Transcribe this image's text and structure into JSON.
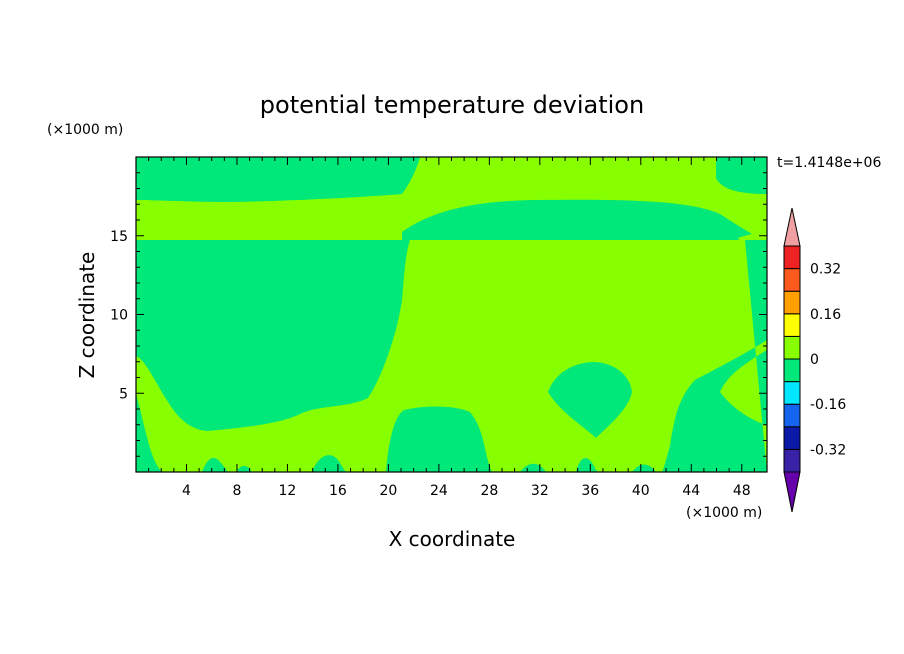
{
  "chart_data": {
    "type": "heatmap",
    "title": "potential temperature deviation",
    "xlabel": "X coordinate",
    "ylabel": "Z coordinate",
    "x_unit": "(×1000 m)",
    "y_unit": "(×1000 m)",
    "time_label": "t=1.4148e+06",
    "xlim": [
      0,
      50
    ],
    "ylim": [
      0,
      20
    ],
    "x_ticks": [
      4,
      8,
      12,
      16,
      20,
      24,
      28,
      32,
      36,
      40,
      44,
      48
    ],
    "y_ticks": [
      5,
      10,
      15
    ],
    "colorbar": {
      "levels": [
        -0.4,
        -0.32,
        -0.24,
        -0.16,
        -0.08,
        0,
        0.08,
        0.16,
        0.24,
        0.32,
        0.4
      ],
      "labels": [
        "0.32",
        "0.16",
        "0",
        "-0.16",
        "-0.32"
      ],
      "label_values": [
        0.32,
        0.16,
        0,
        -0.16,
        -0.32
      ],
      "colors_bottom_to_top": [
        "#6600aa",
        "#3a22a8",
        "#0a1aa6",
        "#1464ee",
        "#00e8ff",
        "#00e87a",
        "#88ff00",
        "#ffff00",
        "#ffa000",
        "#ff5a1e",
        "#ee2222",
        "#f0a0a0"
      ],
      "extend": "both"
    },
    "regions": [
      {
        "name": "background-slightly-positive",
        "range": [
          0,
          0.08
        ],
        "color": "#88ff00"
      },
      {
        "name": "slightly-negative-areas",
        "range": [
          -0.08,
          0
        ],
        "color": "#00e87a"
      }
    ]
  }
}
